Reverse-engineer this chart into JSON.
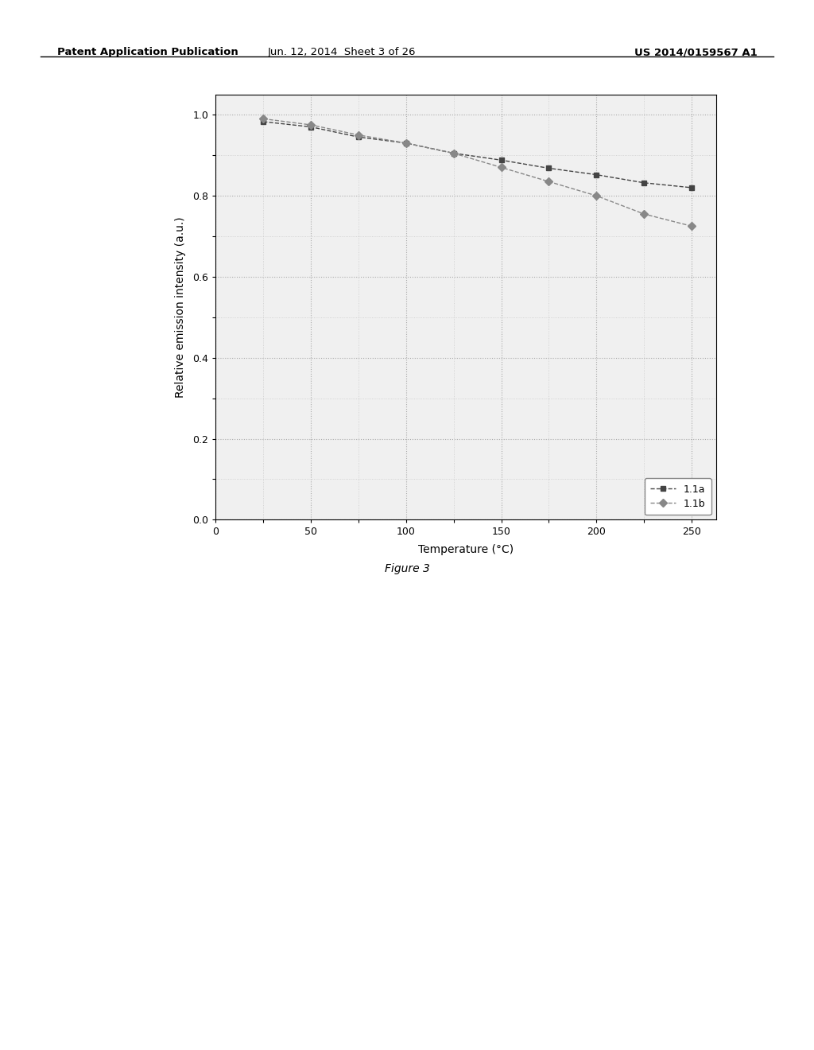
{
  "series_1a": {
    "label": "1.1a",
    "x": [
      25,
      50,
      75,
      100,
      125,
      150,
      175,
      200,
      225,
      250
    ],
    "y": [
      0.983,
      0.97,
      0.945,
      0.93,
      0.905,
      0.888,
      0.868,
      0.852,
      0.832,
      0.82
    ],
    "color": "#444444",
    "marker": "s",
    "linestyle": "--"
  },
  "series_1b": {
    "label": "1.1b",
    "x": [
      25,
      50,
      75,
      100,
      125,
      150,
      175,
      200,
      225,
      250
    ],
    "y": [
      0.99,
      0.975,
      0.95,
      0.93,
      0.905,
      0.87,
      0.835,
      0.8,
      0.755,
      0.725
    ],
    "color": "#888888",
    "marker": "D",
    "linestyle": "--"
  },
  "xlabel": "Temperature (°C)",
  "ylabel": "Relative emission intensity (a.u.)",
  "xlim": [
    0,
    263
  ],
  "ylim": [
    0.0,
    1.05
  ],
  "xticks": [
    0,
    50,
    100,
    150,
    200,
    250
  ],
  "yticks": [
    0.0,
    0.2,
    0.4,
    0.6,
    0.8,
    1.0
  ],
  "background_color": "#ffffff",
  "plot_bg_color": "#f0f0f0",
  "grid_color": "#aaaaaa",
  "figure_caption": "Figure 3",
  "header_left": "Patent Application Publication",
  "header_center": "Jun. 12, 2014  Sheet 3 of 26",
  "header_right": "US 2014/0159567 A1"
}
